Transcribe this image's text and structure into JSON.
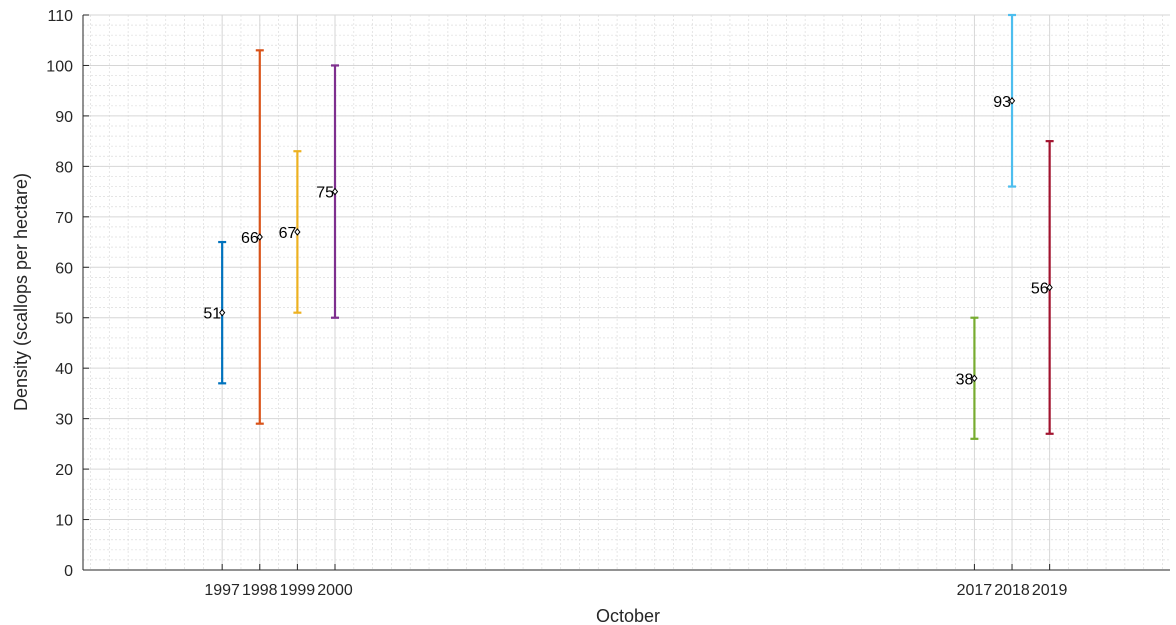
{
  "chart_data": {
    "type": "errorbar",
    "xlabel": "October",
    "ylabel": "Density (scallops per hectare)",
    "ylim": [
      0,
      110
    ],
    "yticks": [
      0,
      10,
      20,
      30,
      40,
      50,
      60,
      70,
      80,
      90,
      100,
      110
    ],
    "grid": true,
    "minor_grid": true,
    "points": [
      {
        "year": 1997,
        "label": "1997",
        "value": 51,
        "lower": 37,
        "upper": 65,
        "color": "#0072BD"
      },
      {
        "year": 1998,
        "label": "1998",
        "value": 66,
        "lower": 29,
        "upper": 103,
        "color": "#D95319"
      },
      {
        "year": 1999,
        "label": "1999",
        "value": 67,
        "lower": 51,
        "upper": 83,
        "color": "#EDB120"
      },
      {
        "year": 2000,
        "label": "2000",
        "value": 75,
        "lower": 50,
        "upper": 100,
        "color": "#7E2F8E"
      },
      {
        "year": 2017,
        "label": "2017",
        "value": 38,
        "lower": 26,
        "upper": 50,
        "color": "#77AC30"
      },
      {
        "year": 2018,
        "label": "2018",
        "value": 93,
        "lower": 76,
        "upper": 110,
        "color": "#4DBEEE"
      },
      {
        "year": 2019,
        "label": "2019",
        "value": 56,
        "lower": 27,
        "upper": 85,
        "color": "#A2142F"
      }
    ]
  }
}
